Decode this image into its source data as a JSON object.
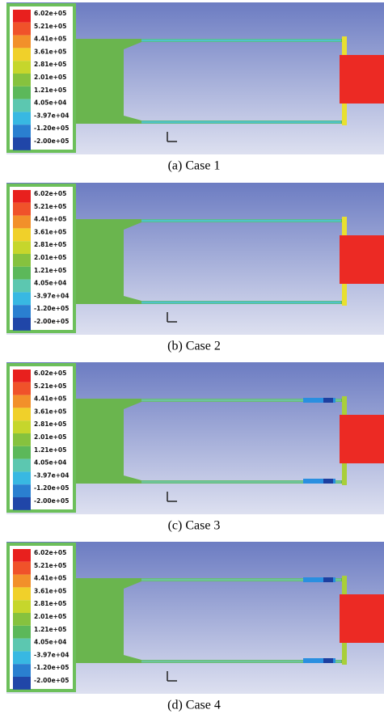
{
  "panels": [
    {
      "caption": "(a) Case 1",
      "legend": [
        "6.02e+05",
        "5.21e+05",
        "4.41e+05",
        "3.61e+05",
        "2.81e+05",
        "2.01e+05",
        "1.21e+05",
        "4.05e+04",
        "-3.97e+04",
        "-1.20e+05",
        "-2.00e+05"
      ]
    },
    {
      "caption": "(b) Case 2",
      "legend": [
        "6.02e+05",
        "5.21e+05",
        "4.41e+05",
        "3.61e+05",
        "2.81e+05",
        "2.01e+05",
        "1.21e+05",
        "4.05e+04",
        "-3.97e+04",
        "-1.20e+05",
        "-2.00e+05"
      ]
    },
    {
      "caption": "(c) Case 3",
      "legend": [
        "6.02e+05",
        "5.21e+05",
        "4.41e+05",
        "3.61e+05",
        "2.81e+05",
        "2.01e+05",
        "1.21e+05",
        "4.05e+04",
        "-3.97e+04",
        "-1.20e+05",
        "-2.00e+05"
      ]
    },
    {
      "caption": "(d) Case 4",
      "legend": [
        "6.02e+05",
        "5.21e+05",
        "4.41e+05",
        "3.61e+05",
        "2.81e+05",
        "2.01e+05",
        "1.21e+05",
        "4.05e+04",
        "-3.97e+04",
        "-1.20e+05",
        "-2.00e+05"
      ]
    }
  ]
}
